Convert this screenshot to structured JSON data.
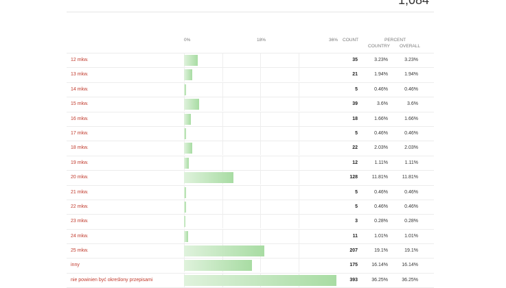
{
  "header": {
    "total": "1,084",
    "ticks": [
      "0%",
      "18%",
      "36%"
    ],
    "count_label": "COUNT",
    "percent_label": "PERCENT",
    "country_label": "COUNTRY",
    "overall_label": "OVERALL"
  },
  "rows": [
    {
      "label": "12 mkw.",
      "count": "35",
      "country": "3.23%",
      "overall": "3.23%",
      "pct": 3.23
    },
    {
      "label": "13 mkw.",
      "count": "21",
      "country": "1.94%",
      "overall": "1.94%",
      "pct": 1.94
    },
    {
      "label": "14 mkw.",
      "count": "5",
      "country": "0.46%",
      "overall": "0.46%",
      "pct": 0.46
    },
    {
      "label": "15 mkw.",
      "count": "39",
      "country": "3.6%",
      "overall": "3.6%",
      "pct": 3.6
    },
    {
      "label": "16 mkw.",
      "count": "18",
      "country": "1.66%",
      "overall": "1.66%",
      "pct": 1.66
    },
    {
      "label": "17 mkw.",
      "count": "5",
      "country": "0.46%",
      "overall": "0.46%",
      "pct": 0.46
    },
    {
      "label": "18 mkw.",
      "count": "22",
      "country": "2.03%",
      "overall": "2.03%",
      "pct": 2.03
    },
    {
      "label": "19 mkw.",
      "count": "12",
      "country": "1.11%",
      "overall": "1.11%",
      "pct": 1.11
    },
    {
      "label": "20 mkw.",
      "count": "128",
      "country": "11.81%",
      "overall": "11.81%",
      "pct": 11.81
    },
    {
      "label": "21 mkw.",
      "count": "5",
      "country": "0.46%",
      "overall": "0.46%",
      "pct": 0.46
    },
    {
      "label": "22 mkw.",
      "count": "5",
      "country": "0.46%",
      "overall": "0.46%",
      "pct": 0.46
    },
    {
      "label": "23 mkw.",
      "count": "3",
      "country": "0.28%",
      "overall": "0.28%",
      "pct": 0.28
    },
    {
      "label": "24 mkw.",
      "count": "11",
      "country": "1.01%",
      "overall": "1.01%",
      "pct": 1.01
    },
    {
      "label": "25 mkw.",
      "count": "207",
      "country": "19.1%",
      "overall": "19.1%",
      "pct": 19.1
    },
    {
      "label": "inny",
      "count": "175",
      "country": "16.14%",
      "overall": "16.14%",
      "pct": 16.14
    },
    {
      "label": "nie powinien być określony przepisami",
      "count": "393",
      "country": "36.25%",
      "overall": "36.25%",
      "pct": 36.25
    }
  ],
  "colors": {
    "label": "#c0392b",
    "bar_light": "#dff2dc",
    "bar_dark": "#a8dca3"
  },
  "chart_data": {
    "type": "bar",
    "categories": [
      "12 mkw.",
      "13 mkw.",
      "14 mkw.",
      "15 mkw.",
      "16 mkw.",
      "17 mkw.",
      "18 mkw.",
      "19 mkw.",
      "20 mkw.",
      "21 mkw.",
      "22 mkw.",
      "23 mkw.",
      "24 mkw.",
      "25 mkw.",
      "inny",
      "nie powinien być określony przepisami"
    ],
    "values": [
      3.23,
      1.94,
      0.46,
      3.6,
      1.66,
      0.46,
      2.03,
      1.11,
      11.81,
      0.46,
      0.46,
      0.28,
      1.01,
      19.1,
      16.14,
      36.25
    ],
    "xlim": [
      0,
      36
    ],
    "orientation": "horizontal"
  }
}
